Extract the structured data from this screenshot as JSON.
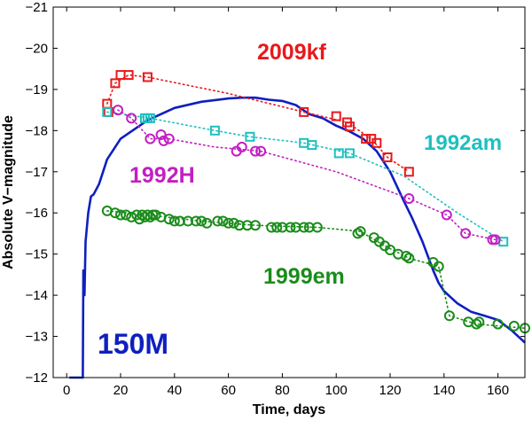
{
  "chart_data": {
    "type": "scatter",
    "title": "",
    "xlabel": "Time, days",
    "ylabel": "Absolute V−magnitude",
    "xlim": [
      -5,
      170
    ],
    "ylim": [
      -12,
      -21
    ],
    "y_inverted": true,
    "x_ticks": [
      0,
      20,
      40,
      60,
      80,
      100,
      120,
      140,
      160
    ],
    "y_ticks": [
      -21,
      -20,
      -19,
      -18,
      -17,
      -16,
      -15,
      -14,
      -13,
      -12
    ],
    "y_tick_labels": [
      "−21",
      "−20",
      "−19",
      "−18",
      "−17",
      "−16",
      "−15",
      "−14",
      "−13",
      "−12"
    ],
    "series": [
      {
        "name": "2009kf",
        "label": "2009kf",
        "marker": "square",
        "color": "#e8191b",
        "points": [
          [
            15,
            -18.65
          ],
          [
            15.5,
            -18.45
          ],
          [
            18,
            -19.15
          ],
          [
            20,
            -19.35
          ],
          [
            23,
            -19.35
          ],
          [
            30,
            -19.3
          ],
          [
            88,
            -18.45
          ],
          [
            100,
            -18.35
          ],
          [
            104,
            -18.2
          ],
          [
            105,
            -18.1
          ],
          [
            111,
            -17.8
          ],
          [
            113,
            -17.8
          ],
          [
            115,
            -17.7
          ],
          [
            119,
            -17.35
          ],
          [
            127,
            -17.0
          ]
        ],
        "trend": [
          [
            15,
            -18.65
          ],
          [
            18,
            -19.15
          ],
          [
            23,
            -19.35
          ],
          [
            30,
            -19.3
          ],
          [
            60,
            -18.9
          ],
          [
            88,
            -18.45
          ],
          [
            104,
            -18.2
          ],
          [
            113,
            -17.8
          ],
          [
            119,
            -17.35
          ],
          [
            127,
            -17.0
          ]
        ]
      },
      {
        "name": "1992am",
        "label": "1992am",
        "marker": "square",
        "color": "#1fbfbf",
        "points": [
          [
            15,
            -18.45
          ],
          [
            29,
            -18.3
          ],
          [
            30,
            -18.3
          ],
          [
            31,
            -18.3
          ],
          [
            55,
            -18.0
          ],
          [
            68,
            -17.85
          ],
          [
            88,
            -17.7
          ],
          [
            91,
            -17.65
          ],
          [
            101,
            -17.45
          ],
          [
            105,
            -17.45
          ],
          [
            162,
            -15.3
          ]
        ],
        "trend": [
          [
            15,
            -18.45
          ],
          [
            31,
            -18.3
          ],
          [
            55,
            -18.0
          ],
          [
            68,
            -17.85
          ],
          [
            88,
            -17.7
          ],
          [
            105,
            -17.45
          ],
          [
            125,
            -16.9
          ],
          [
            145,
            -16.0
          ],
          [
            162,
            -15.3
          ]
        ]
      },
      {
        "name": "1992H",
        "label": "1992H",
        "marker": "circle",
        "color": "#c21fc2",
        "points": [
          [
            19,
            -18.5
          ],
          [
            24,
            -18.3
          ],
          [
            31,
            -17.8
          ],
          [
            35,
            -17.9
          ],
          [
            36,
            -17.75
          ],
          [
            38,
            -17.8
          ],
          [
            63,
            -17.5
          ],
          [
            65,
            -17.6
          ],
          [
            70,
            -17.5
          ],
          [
            72,
            -17.5
          ],
          [
            127,
            -16.35
          ],
          [
            141,
            -15.95
          ],
          [
            148,
            -15.5
          ],
          [
            158,
            -15.35
          ],
          [
            159,
            -15.35
          ]
        ],
        "trend": [
          [
            19,
            -18.5
          ],
          [
            24,
            -18.3
          ],
          [
            31,
            -17.8
          ],
          [
            38,
            -17.8
          ],
          [
            55,
            -17.6
          ],
          [
            72,
            -17.5
          ],
          [
            100,
            -17.0
          ],
          [
            127,
            -16.35
          ],
          [
            141,
            -15.95
          ],
          [
            148,
            -15.5
          ],
          [
            159,
            -15.35
          ]
        ]
      },
      {
        "name": "1999em",
        "label": "1999em",
        "marker": "circle",
        "color": "#1a8c1a",
        "points": [
          [
            15,
            -16.05
          ],
          [
            18,
            -16.0
          ],
          [
            20,
            -15.95
          ],
          [
            22,
            -15.95
          ],
          [
            24,
            -15.9
          ],
          [
            26,
            -15.95
          ],
          [
            27,
            -15.85
          ],
          [
            28,
            -15.95
          ],
          [
            29,
            -15.9
          ],
          [
            30,
            -15.95
          ],
          [
            31,
            -15.9
          ],
          [
            32,
            -15.95
          ],
          [
            33,
            -15.95
          ],
          [
            35,
            -15.9
          ],
          [
            38,
            -15.85
          ],
          [
            40,
            -15.8
          ],
          [
            42,
            -15.8
          ],
          [
            45,
            -15.8
          ],
          [
            48,
            -15.8
          ],
          [
            50,
            -15.8
          ],
          [
            52,
            -15.75
          ],
          [
            56,
            -15.8
          ],
          [
            58,
            -15.8
          ],
          [
            60,
            -15.75
          ],
          [
            62,
            -15.75
          ],
          [
            64,
            -15.7
          ],
          [
            67,
            -15.7
          ],
          [
            70,
            -15.7
          ],
          [
            76,
            -15.65
          ],
          [
            78,
            -15.65
          ],
          [
            80,
            -15.65
          ],
          [
            83,
            -15.65
          ],
          [
            85,
            -15.65
          ],
          [
            88,
            -15.65
          ],
          [
            90,
            -15.65
          ],
          [
            93,
            -15.65
          ],
          [
            108,
            -15.5
          ],
          [
            109,
            -15.55
          ],
          [
            114,
            -15.4
          ],
          [
            116,
            -15.3
          ],
          [
            118,
            -15.2
          ],
          [
            120,
            -15.1
          ],
          [
            123,
            -15.0
          ],
          [
            126,
            -14.95
          ],
          [
            127,
            -14.9
          ],
          [
            136,
            -14.8
          ],
          [
            138,
            -14.7
          ],
          [
            142,
            -13.5
          ],
          [
            149,
            -13.35
          ],
          [
            152,
            -13.3
          ],
          [
            153,
            -13.35
          ],
          [
            160,
            -13.3
          ],
          [
            166,
            -13.25
          ],
          [
            170,
            -13.2
          ]
        ],
        "trend": [
          [
            15,
            -16.05
          ],
          [
            30,
            -15.95
          ],
          [
            50,
            -15.8
          ],
          [
            70,
            -15.7
          ],
          [
            93,
            -15.65
          ],
          [
            109,
            -15.55
          ],
          [
            118,
            -15.2
          ],
          [
            127,
            -14.9
          ],
          [
            138,
            -14.7
          ],
          [
            142,
            -13.5
          ],
          [
            152,
            -13.3
          ],
          [
            170,
            -13.2
          ]
        ]
      }
    ],
    "model": {
      "name": "150M",
      "label": "150M",
      "color": "#0f1fbf",
      "curve": [
        [
          1,
          -12.0
        ],
        [
          6,
          -12.0
        ],
        [
          6.2,
          -14.6
        ],
        [
          6.6,
          -14.0
        ],
        [
          7,
          -15.3
        ],
        [
          8,
          -16.0
        ],
        [
          9,
          -16.4
        ],
        [
          10,
          -16.45
        ],
        [
          12,
          -16.7
        ],
        [
          15,
          -17.3
        ],
        [
          20,
          -17.8
        ],
        [
          30,
          -18.25
        ],
        [
          40,
          -18.55
        ],
        [
          50,
          -18.7
        ],
        [
          60,
          -18.78
        ],
        [
          65,
          -18.8
        ],
        [
          70,
          -18.8
        ],
        [
          75,
          -18.75
        ],
        [
          80,
          -18.72
        ],
        [
          85,
          -18.62
        ],
        [
          90,
          -18.4
        ],
        [
          95,
          -18.3
        ],
        [
          100,
          -18.12
        ],
        [
          105,
          -17.98
        ],
        [
          110,
          -17.8
        ],
        [
          115,
          -17.5
        ],
        [
          120,
          -17.0
        ],
        [
          125,
          -16.3
        ],
        [
          128,
          -15.9
        ],
        [
          132,
          -15.3
        ],
        [
          136,
          -14.6
        ],
        [
          138,
          -14.3
        ],
        [
          140,
          -14.1
        ],
        [
          145,
          -13.8
        ],
        [
          150,
          -13.6
        ],
        [
          155,
          -13.5
        ],
        [
          160,
          -13.4
        ],
        [
          165,
          -13.15
        ],
        [
          170,
          -12.85
        ]
      ]
    },
    "annotations": [
      {
        "text": "2009kf",
        "series": "2009kf"
      },
      {
        "text": "1992am",
        "series": "1992am"
      },
      {
        "text": "1992H",
        "series": "1992H"
      },
      {
        "text": "1999em",
        "series": "1999em"
      },
      {
        "text": "150M",
        "series": "model"
      }
    ],
    "legend": "none",
    "grid": false
  }
}
